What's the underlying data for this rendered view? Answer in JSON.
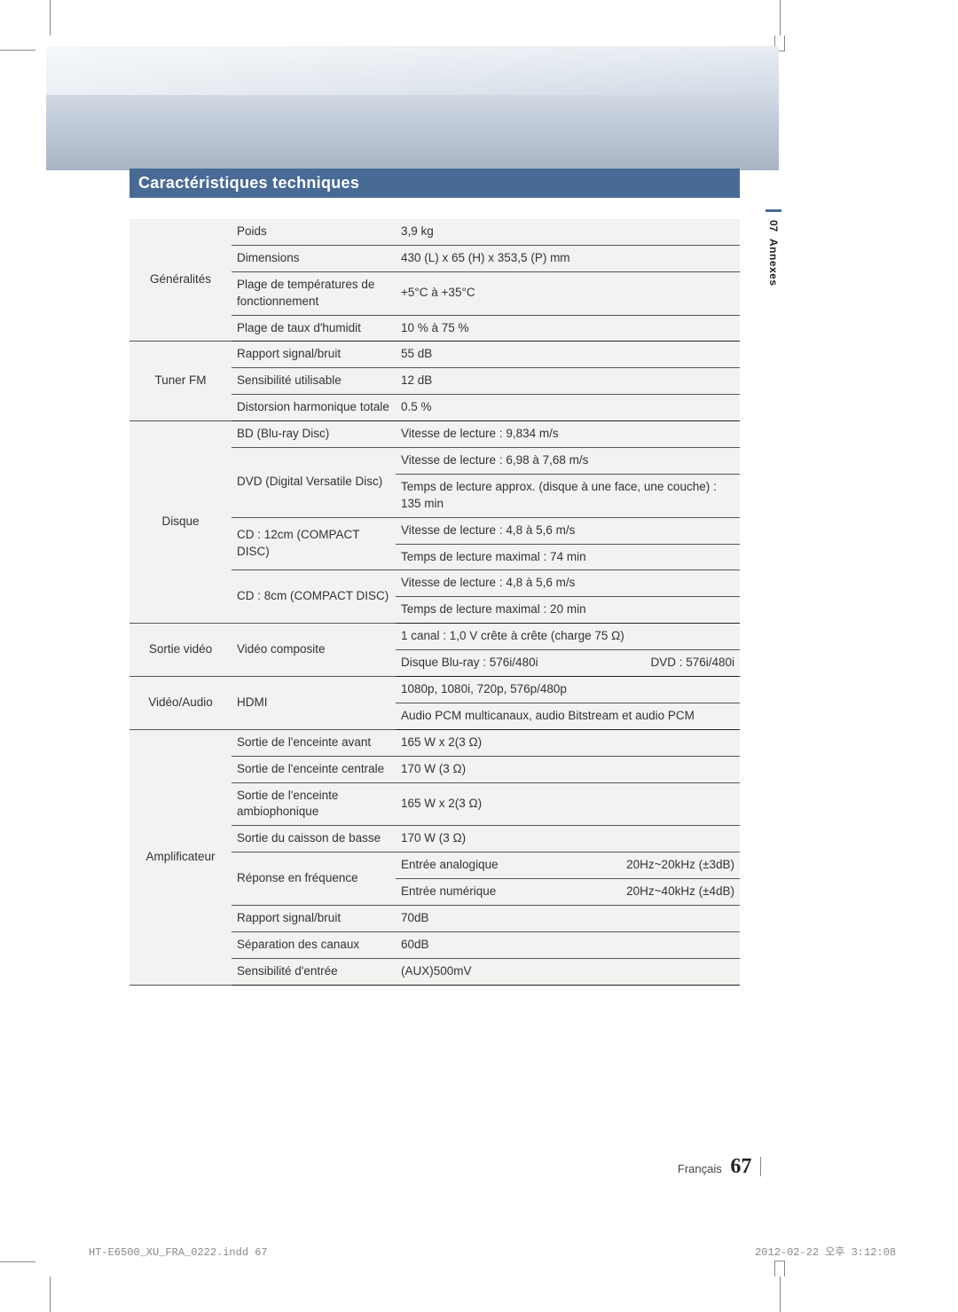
{
  "section_title": "Caractéristiques techniques",
  "side": {
    "num": "07",
    "label": "Annexes"
  },
  "footer": {
    "lang": "Français",
    "page": "67"
  },
  "slug": {
    "left": "HT-E6500_XU_FRA_0222.indd   67",
    "right": "2012-02-22   오후 3:12:08"
  },
  "categories": {
    "gen": "Généralités",
    "tuner": "Tuner FM",
    "disc": "Disque",
    "vout": "Sortie vidéo",
    "va": "Vidéo/Audio",
    "amp": "Amplificateur"
  },
  "rows": {
    "gen": {
      "weight_l": "Poids",
      "weight_v": "3,9 kg",
      "dim_l": "Dimensions",
      "dim_v": "430 (L) x 65 (H) x 353,5 (P) mm",
      "temp_l": "Plage de températures de fonctionnement",
      "temp_v": "+5°C à +35°C",
      "hum_l": "Plage de taux d'humidit",
      "hum_v": "10 % à 75 %"
    },
    "tuner": {
      "sn_l": "Rapport signal/bruit",
      "sn_v": "55 dB",
      "sens_l": "Sensibilité utilisable",
      "sens_v": "12 dB",
      "thd_l": "Distorsion harmonique totale",
      "thd_v": "0.5 %"
    },
    "disc": {
      "bd_l": "BD (Blu-ray Disc)",
      "bd_v": "Vitesse de lecture : 9,834 m/s",
      "dvd_l": "DVD (Digital Versatile Disc)",
      "dvd_v1": "Vitesse de lecture : 6,98 à 7,68 m/s",
      "dvd_v2": "Temps de lecture approx. (disque à une face, une couche) : 135 min",
      "cd12_l": "CD : 12cm (COMPACT DISC)",
      "cd12_v1": "Vitesse de lecture : 4,8 à 5,6 m/s",
      "cd12_v2": "Temps de lecture maximal : 74 min",
      "cd8_l": "CD : 8cm (COMPACT DISC)",
      "cd8_v1": "Vitesse de lecture : 4,8 à 5,6 m/s",
      "cd8_v2": "Temps de lecture maximal : 20 min"
    },
    "vout": {
      "comp_l": "Vidéo composite",
      "comp_v1": "1 canal : 1,0 V crête à crête (charge 75 Ω)",
      "comp_v2a": "Disque Blu-ray : 576i/480i",
      "comp_v2b": "DVD : 576i/480i"
    },
    "va": {
      "hdmi_l": "HDMI",
      "hdmi_v1": "1080p, 1080i, 720p, 576p/480p",
      "hdmi_v2": "Audio PCM multicanaux, audio Bitstream et audio PCM"
    },
    "amp": {
      "front_l": "Sortie de l'enceinte avant",
      "front_v": "165 W x 2(3 Ω)",
      "center_l": "Sortie de l'enceinte centrale",
      "center_v": "170 W (3 Ω)",
      "surr_l": "Sortie de l'enceinte ambiophonique",
      "surr_v": "165 W x 2(3 Ω)",
      "sub_l": "Sortie du caisson de basse",
      "sub_v": "170 W (3 Ω)",
      "freq_l": "Réponse en fréquence",
      "freq_v1a": "Entrée analogique",
      "freq_v1b": "20Hz~20kHz (±3dB)",
      "freq_v2a": "Entrée numérique",
      "freq_v2b": "20Hz~40kHz (±4dB)",
      "sn_l": "Rapport signal/bruit",
      "sn_v": "70dB",
      "sep_l": "Séparation des canaux",
      "sep_v": "60dB",
      "sens_l": "Sensibilité d'entrée",
      "sens_v": "(AUX)500mV"
    }
  }
}
